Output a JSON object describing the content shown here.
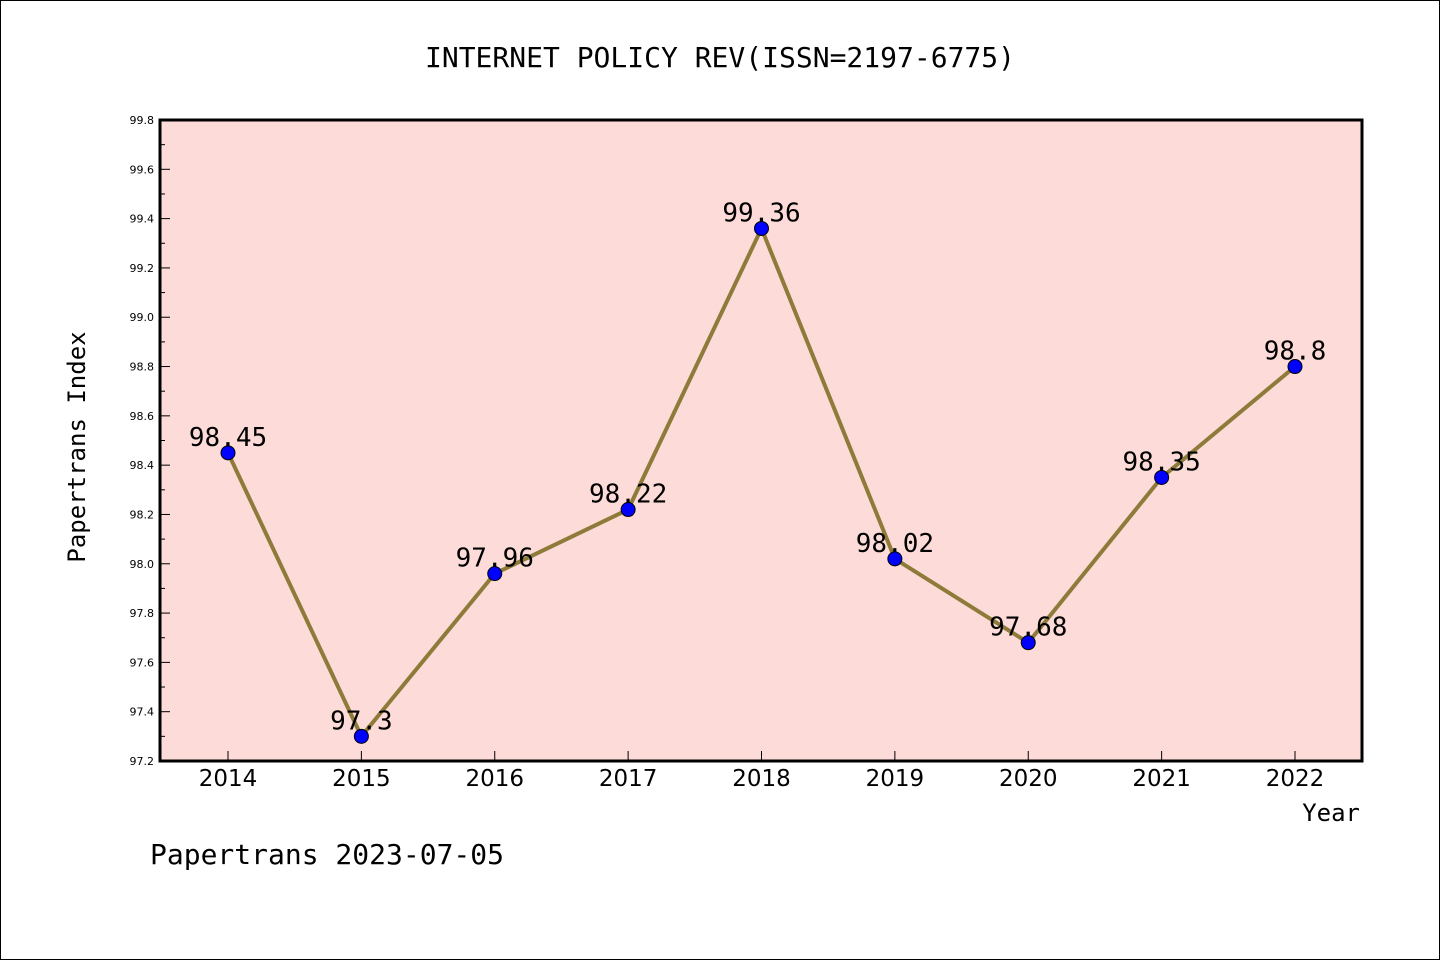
{
  "colors": {
    "plot_background": "#fddbd8",
    "line": "#8e7b3a",
    "marker": "#0000ff",
    "frame": "#000000"
  },
  "chart_data": {
    "type": "line",
    "title": "INTERNET POLICY REV(ISSN=2197-6775)",
    "xlabel": "Year",
    "ylabel": "Papertrans Index",
    "categories": [
      "2014",
      "2015",
      "2016",
      "2017",
      "2018",
      "2019",
      "2020",
      "2021",
      "2022"
    ],
    "series": [
      {
        "values": [
          98.45,
          97.3,
          97.96,
          98.22,
          99.36,
          98.02,
          97.68,
          98.35,
          98.8
        ],
        "data_labels": [
          "98.45",
          "97.3",
          "97.96",
          "98.22",
          "99.36",
          "98.02",
          "97.68",
          "98.35",
          "98.8"
        ]
      }
    ],
    "ylim": [
      97.2,
      99.8
    ],
    "yticks": [
      97.2,
      97.4,
      97.6,
      97.8,
      98.0,
      98.2,
      98.4,
      98.6,
      98.8,
      99.0,
      99.2,
      99.4,
      99.6,
      99.8
    ],
    "ytick_labels": [
      "97.2",
      "97.4",
      "97.6",
      "97.8",
      "98.0",
      "98.2",
      "98.4",
      "98.6",
      "98.8",
      "99.0",
      "99.2",
      "99.4",
      "99.6",
      "99.8"
    ],
    "grid": false,
    "legend": "none"
  },
  "footer": {
    "text": "Papertrans 2023-07-05"
  }
}
